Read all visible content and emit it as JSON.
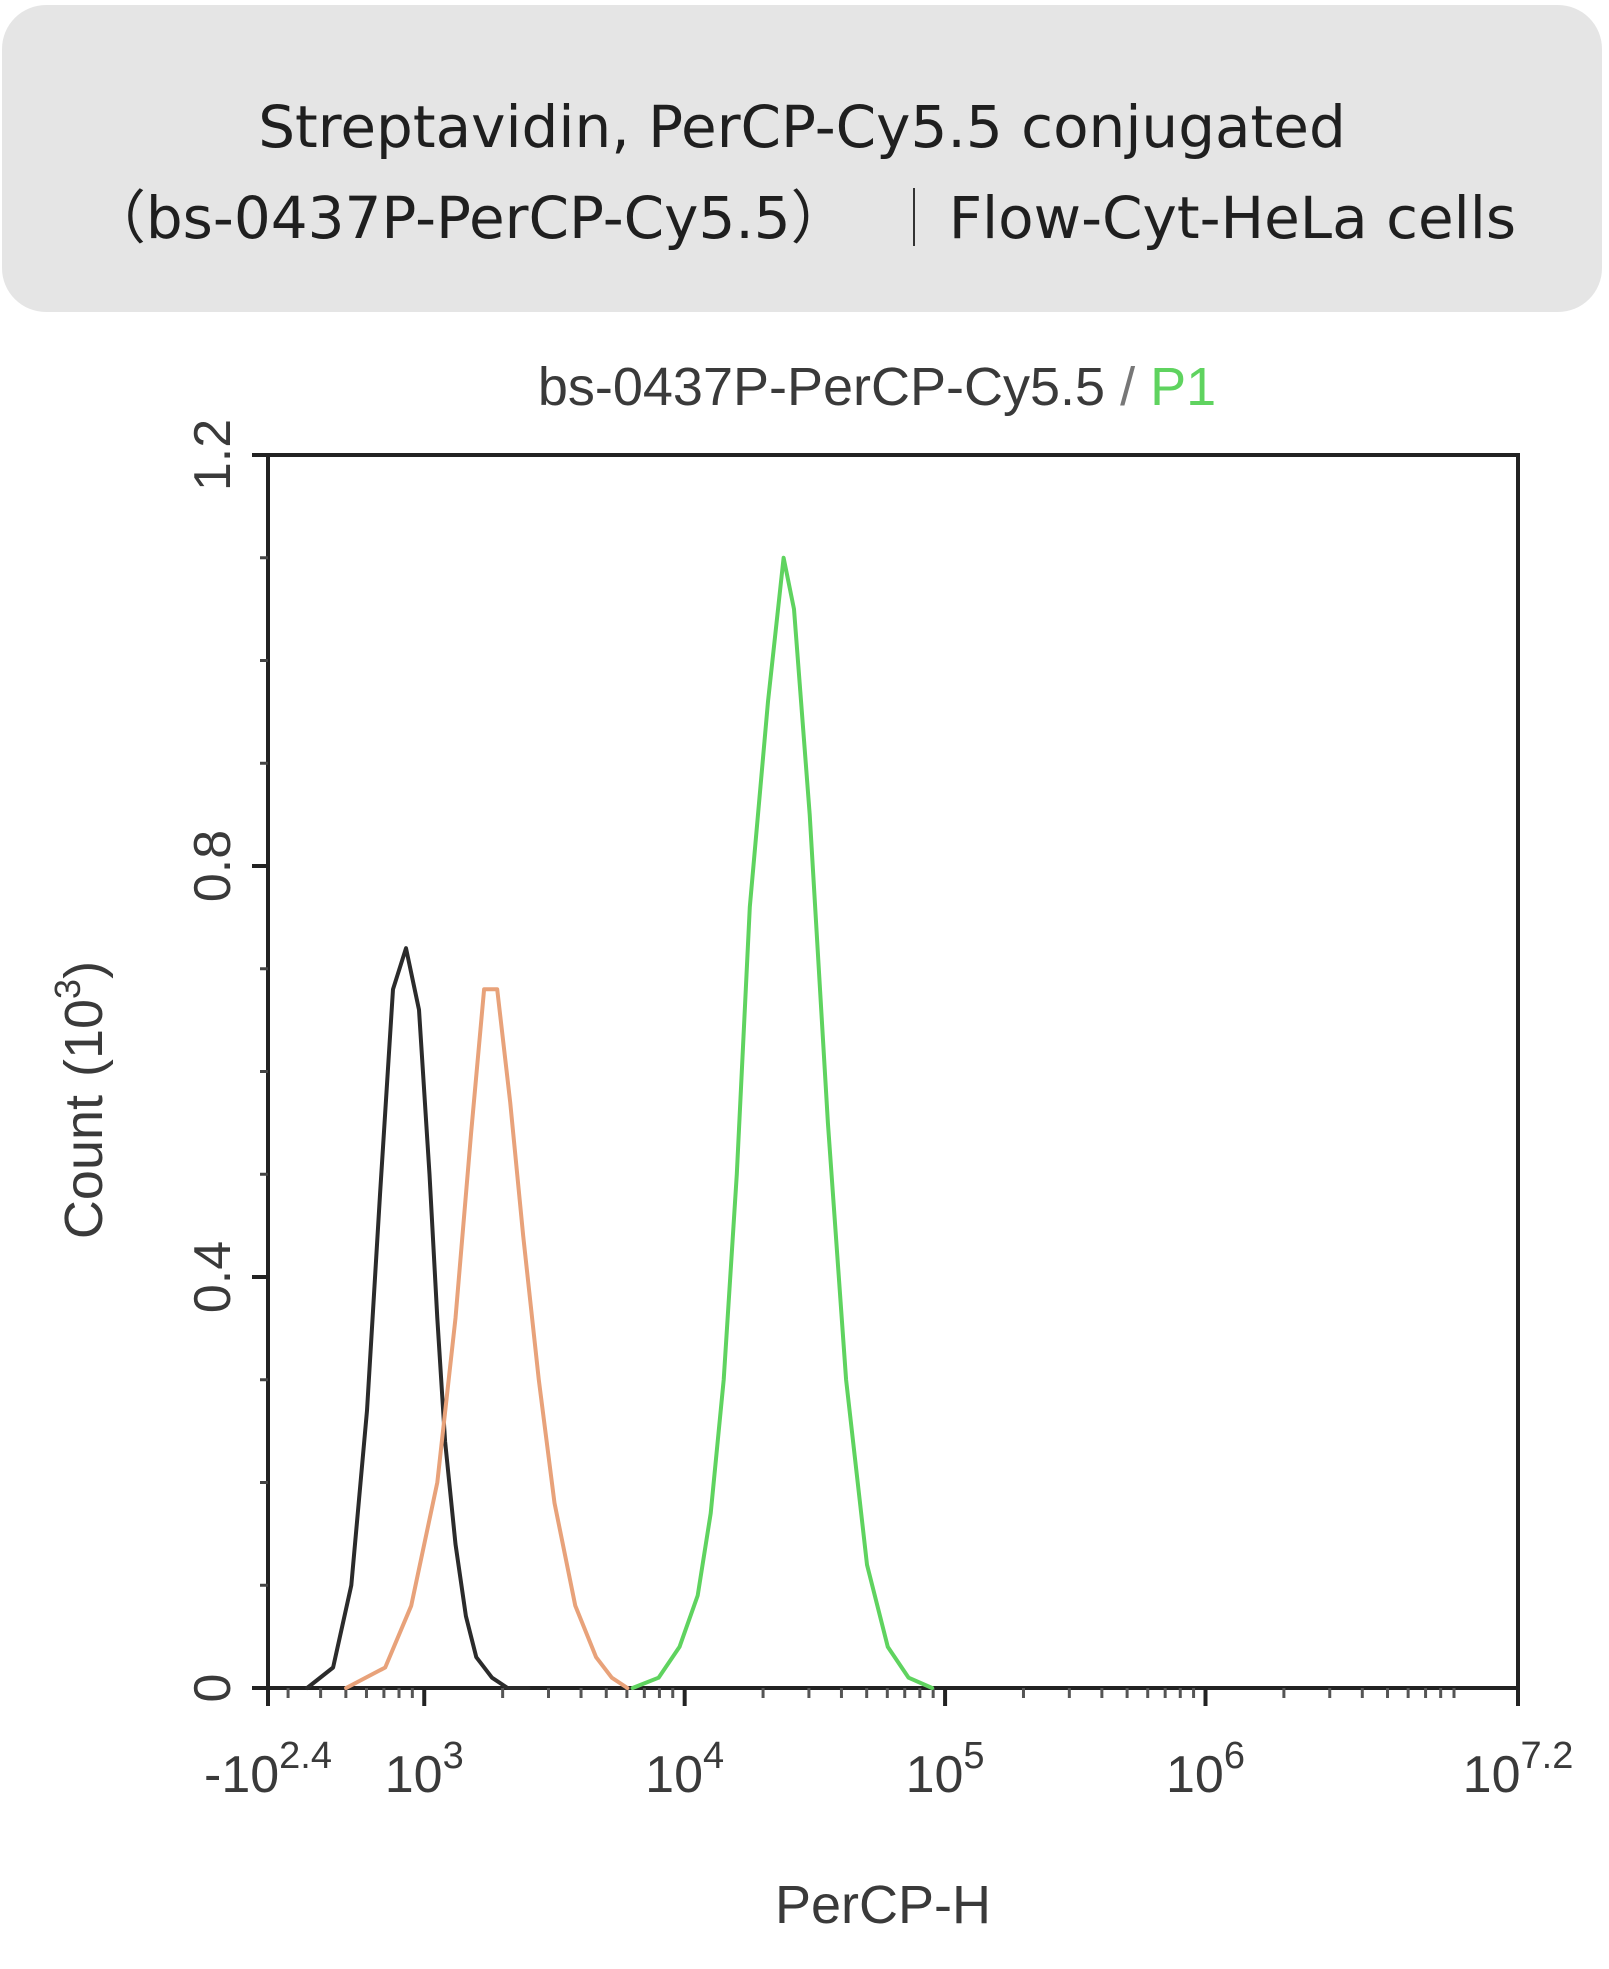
{
  "header": {
    "line1": "Streptavidin, PerCP-Cy5.5 conjugated",
    "line2_part1": "（bs-0437P-PerCP-Cy5.5）",
    "line2_part2": "Flow-Cyt-HeLa cells"
  },
  "chart_data": {
    "type": "line",
    "title_main": "bs-0437P-PerCP-Cy5.5",
    "title_sep": " / ",
    "title_gate": "P1",
    "xlabel": "PerCP-H",
    "ylabel": "Count",
    "ylabel_unit": "(10",
    "ylabel_unit_exp": "3",
    "ylabel_unit_close": ")",
    "xlim_log": [
      2.4,
      7.2
    ],
    "ylim": [
      0,
      1.2
    ],
    "y_ticks": [
      {
        "value": 0,
        "label": "0"
      },
      {
        "value": 0.4,
        "label": "0.4"
      },
      {
        "value": 0.8,
        "label": "0.8"
      },
      {
        "value": 1.2,
        "label": "1.2"
      }
    ],
    "x_ticks": [
      {
        "exp": 2.4,
        "base": "-10",
        "sup": "2.4"
      },
      {
        "exp": 3,
        "base": "10",
        "sup": "3"
      },
      {
        "exp": 4,
        "base": "10",
        "sup": "4"
      },
      {
        "exp": 5,
        "base": "10",
        "sup": "5"
      },
      {
        "exp": 6,
        "base": "10",
        "sup": "6"
      },
      {
        "exp": 7.2,
        "base": "10",
        "sup": "7.2"
      }
    ],
    "colors": {
      "control": "#2b2b2b",
      "isotype": "#e8a27a",
      "sample": "#5fd35f",
      "gate": "#5fd35f"
    },
    "series": [
      {
        "key": "control",
        "x": [
          2.55,
          2.65,
          2.72,
          2.78,
          2.83,
          2.88,
          2.93,
          2.98,
          3.02,
          3.05,
          3.08,
          3.12,
          3.16,
          3.2,
          3.26,
          3.32,
          3.4
        ],
        "y": [
          0,
          0.02,
          0.1,
          0.27,
          0.48,
          0.68,
          0.72,
          0.66,
          0.5,
          0.36,
          0.24,
          0.14,
          0.07,
          0.03,
          0.01,
          0,
          0
        ]
      },
      {
        "key": "isotype",
        "x": [
          2.7,
          2.85,
          2.95,
          3.05,
          3.12,
          3.18,
          3.23,
          3.28,
          3.33,
          3.38,
          3.44,
          3.5,
          3.58,
          3.66,
          3.72,
          3.78
        ],
        "y": [
          0,
          0.02,
          0.08,
          0.2,
          0.36,
          0.54,
          0.68,
          0.68,
          0.57,
          0.44,
          0.3,
          0.18,
          0.08,
          0.03,
          0.01,
          0
        ]
      },
      {
        "key": "sample",
        "x": [
          3.8,
          3.9,
          3.98,
          4.05,
          4.1,
          4.15,
          4.2,
          4.25,
          4.32,
          4.38,
          4.42,
          4.48,
          4.55,
          4.62,
          4.7,
          4.78,
          4.86,
          4.95
        ],
        "y": [
          0,
          0.01,
          0.04,
          0.09,
          0.17,
          0.3,
          0.5,
          0.76,
          0.96,
          1.1,
          1.05,
          0.85,
          0.55,
          0.3,
          0.12,
          0.04,
          0.01,
          0
        ]
      }
    ]
  }
}
